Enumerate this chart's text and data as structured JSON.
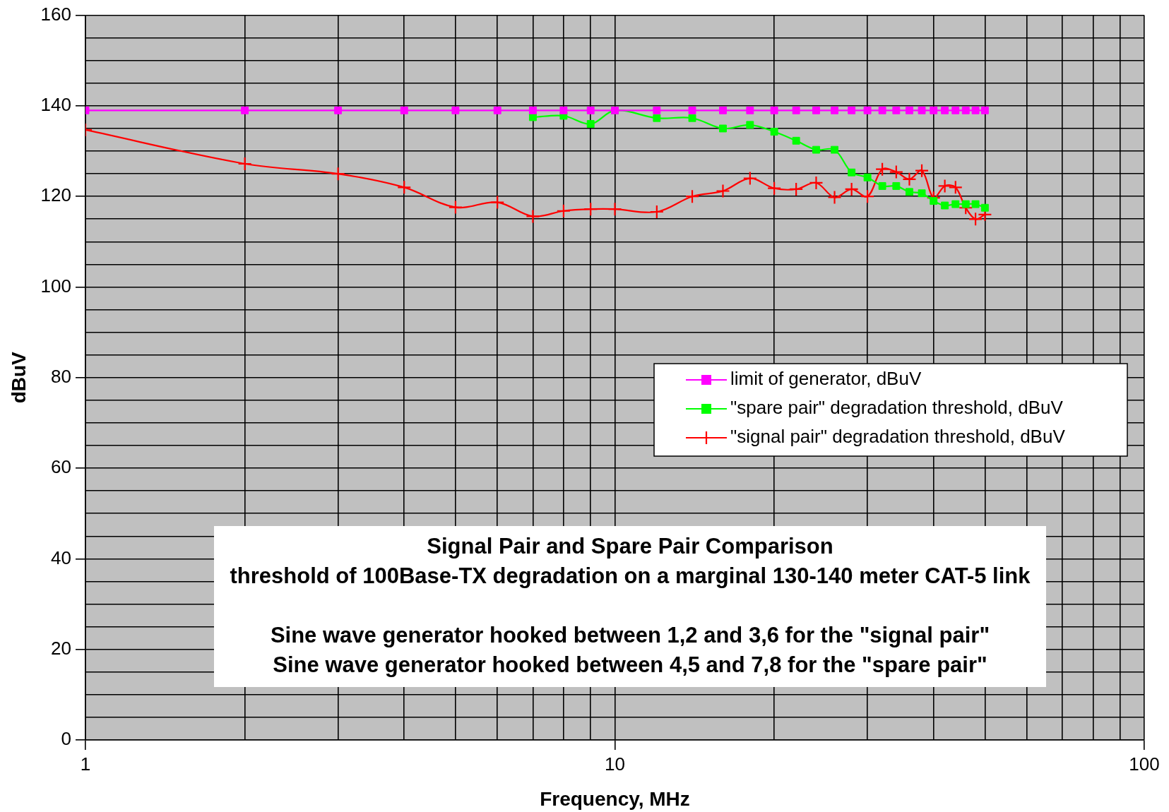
{
  "chart_data": {
    "type": "line",
    "title": "Signal Pair and Spare Pair Comparison",
    "subtitle": "threshold of 100Base-TX degradation on a marginal 130-140 meter CAT-5 link",
    "annotations": [
      "Sine wave generator hooked between 1,2 and 3,6 for the \"signal pair\"",
      "Sine wave generator hooked between 4,5 and 7,8 for the \"spare pair\""
    ],
    "xlabel": "Frequency, MHz",
    "ylabel": "dBuV",
    "log": "x",
    "grid": true,
    "legend": "right",
    "x": [
      1,
      2,
      3,
      4,
      5,
      6,
      7,
      8,
      9,
      10,
      12,
      14,
      16,
      18,
      20,
      22,
      24,
      26,
      28,
      30,
      32,
      34,
      36,
      38,
      40,
      42,
      44,
      46,
      48,
      50
    ],
    "xlim": [
      1,
      100
    ],
    "xticks": [
      1,
      {
        "value": 2,
        "label": null
      },
      {
        "value": 3,
        "label": null
      },
      {
        "value": 4,
        "label": null
      },
      {
        "value": 5,
        "label": null
      },
      {
        "value": 6,
        "label": null
      },
      {
        "value": 7,
        "label": null
      },
      {
        "value": 8,
        "label": null
      },
      {
        "value": 9,
        "label": null
      },
      10,
      {
        "value": 20,
        "label": null
      },
      {
        "value": 30,
        "label": null
      },
      {
        "value": 40,
        "label": null
      },
      {
        "value": 50,
        "label": null
      },
      {
        "value": 60,
        "label": null
      },
      {
        "value": 70,
        "label": null
      },
      {
        "value": 80,
        "label": null
      },
      {
        "value": 90,
        "label": null
      },
      100
    ],
    "ylim": [
      0,
      160
    ],
    "yticks": [
      0,
      {
        "value": 5,
        "label": null
      },
      {
        "value": 10,
        "label": null
      },
      {
        "value": 15,
        "label": null
      },
      20,
      {
        "value": 25,
        "label": null
      },
      {
        "value": 30,
        "label": null
      },
      {
        "value": 35,
        "label": null
      },
      40,
      {
        "value": 45,
        "label": null
      },
      {
        "value": 50,
        "label": null
      },
      {
        "value": 55,
        "label": null
      },
      60,
      {
        "value": 65,
        "label": null
      },
      {
        "value": 70,
        "label": null
      },
      {
        "value": 75,
        "label": null
      },
      80,
      {
        "value": 85,
        "label": null
      },
      {
        "value": 90,
        "label": null
      },
      {
        "value": 95,
        "label": null
      },
      100,
      {
        "value": 105,
        "label": null
      },
      {
        "value": 110,
        "label": null
      },
      {
        "value": 115,
        "label": null
      },
      120,
      {
        "value": 125,
        "label": null
      },
      {
        "value": 130,
        "label": null
      },
      {
        "value": 135,
        "label": null
      },
      140,
      {
        "value": 145,
        "label": null
      },
      {
        "value": 150,
        "label": null
      },
      {
        "value": 155,
        "label": null
      },
      160
    ],
    "series": [
      {
        "name": "limit of generator, dBuV",
        "color": "#ff00ff",
        "marker": "square",
        "values": [
          139,
          139,
          139,
          139,
          139,
          139,
          139,
          139,
          139,
          139,
          139,
          139,
          139,
          139,
          139,
          139,
          139,
          139,
          139,
          139,
          139,
          139,
          139,
          139,
          139,
          139,
          139,
          139,
          139,
          139
        ]
      },
      {
        "name": "\"spare pair\" degradation threshold, dBuV",
        "color": "#00ff00",
        "marker": "square",
        "values": [
          null,
          null,
          null,
          null,
          null,
          null,
          137.5,
          137.8,
          136,
          139,
          137.3,
          137.3,
          135,
          135.8,
          134.3,
          132.3,
          130.3,
          130.3,
          125.3,
          124.2,
          122.3,
          122.3,
          121,
          120.7,
          119,
          118,
          118.3,
          118.3,
          118.3,
          117.5
        ]
      },
      {
        "name": "\"signal pair\" degradation threshold, dBuV",
        "color": "#ff0000",
        "marker": "cross",
        "values": [
          134.7,
          127.2,
          125,
          122,
          117.6,
          118.7,
          115.6,
          116.8,
          117.2,
          117.2,
          116.6,
          120,
          121.2,
          124,
          121.8,
          121.6,
          123,
          119.8,
          121.6,
          120,
          126,
          125.4,
          123.8,
          125.7,
          119.7,
          122.3,
          122,
          117.5,
          115,
          116
        ]
      }
    ]
  }
}
